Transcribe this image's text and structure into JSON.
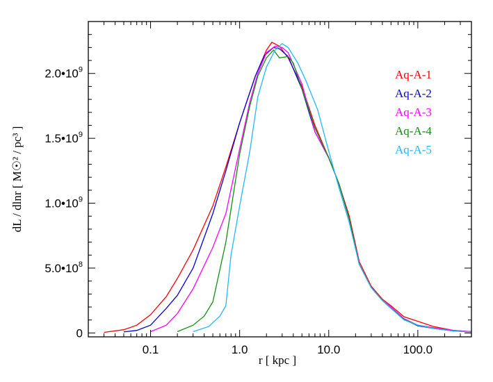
{
  "chart_data": {
    "type": "line",
    "xscale": "log",
    "xlim": [
      0.02,
      400
    ],
    "ylim": [
      -30000000.0,
      2400000000.0
    ],
    "xlabel": "r [ kpc ]",
    "ylabel": "dL / dlnr  [ M☉² / pc³ ]",
    "x_ticks": [
      {
        "value": 0.1,
        "label": "0.1"
      },
      {
        "value": 1.0,
        "label": "1.0"
      },
      {
        "value": 10.0,
        "label": "10.0"
      },
      {
        "value": 100.0,
        "label": "100.0"
      }
    ],
    "y_ticks": [
      {
        "value": 0,
        "label": "0",
        "exp": ""
      },
      {
        "value": 500000000,
        "label": "5.0•10",
        "exp": "8"
      },
      {
        "value": 1000000000,
        "label": "1.0•10",
        "exp": "9"
      },
      {
        "value": 1500000000,
        "label": "1.5•10",
        "exp": "9"
      },
      {
        "value": 2000000000,
        "label": "2.0•10",
        "exp": "9"
      }
    ],
    "legend_position": "top-right",
    "series": [
      {
        "name": "Aq-A-1",
        "color": "#ff0000",
        "points": [
          [
            0.03,
            5000000.0
          ],
          [
            0.05,
            25000000.0
          ],
          [
            0.07,
            60000000.0
          ],
          [
            0.1,
            140000000.0
          ],
          [
            0.15,
            280000000.0
          ],
          [
            0.2,
            420000000.0
          ],
          [
            0.3,
            640000000.0
          ],
          [
            0.5,
            980000000.0
          ],
          [
            0.7,
            1280000000.0
          ],
          [
            1.0,
            1620000000.0
          ],
          [
            1.5,
            1980000000.0
          ],
          [
            2.0,
            2180000000.0
          ],
          [
            2.3,
            2240000000.0
          ],
          [
            2.8,
            2210000000.0
          ],
          [
            3.5,
            2120000000.0
          ],
          [
            5.0,
            1900000000.0
          ],
          [
            7.0,
            1600000000.0
          ],
          [
            10.0,
            1350000000.0
          ],
          [
            13.0,
            1150000000.0
          ],
          [
            17.0,
            900000000.0
          ],
          [
            22.0,
            550000000.0
          ],
          [
            30.0,
            360000000.0
          ],
          [
            40.0,
            260000000.0
          ],
          [
            50.0,
            210000000.0
          ],
          [
            70.0,
            125000000.0
          ],
          [
            100.0,
            90000000.0
          ],
          [
            150.0,
            50000000.0
          ],
          [
            250.0,
            20000000.0
          ],
          [
            400.0,
            10000000.0
          ]
        ]
      },
      {
        "name": "Aq-A-2",
        "color": "#0000e0",
        "points": [
          [
            0.05,
            8000000.0
          ],
          [
            0.07,
            20000000.0
          ],
          [
            0.1,
            60000000.0
          ],
          [
            0.15,
            190000000.0
          ],
          [
            0.2,
            290000000.0
          ],
          [
            0.3,
            500000000.0
          ],
          [
            0.5,
            920000000.0
          ],
          [
            0.7,
            1250000000.0
          ],
          [
            1.0,
            1620000000.0
          ],
          [
            1.5,
            1980000000.0
          ],
          [
            1.9,
            2140000000.0
          ],
          [
            2.4,
            2200000000.0
          ],
          [
            2.8,
            2190000000.0
          ],
          [
            3.5,
            2130000000.0
          ],
          [
            5.0,
            1880000000.0
          ],
          [
            7.0,
            1550000000.0
          ],
          [
            10.0,
            1350000000.0
          ],
          [
            13.0,
            1150000000.0
          ],
          [
            17.0,
            880000000.0
          ],
          [
            22.0,
            530000000.0
          ],
          [
            30.0,
            350000000.0
          ],
          [
            40.0,
            250000000.0
          ],
          [
            50.0,
            190000000.0
          ],
          [
            70.0,
            105000000.0
          ],
          [
            100.0,
            55000000.0
          ],
          [
            150.0,
            35000000.0
          ],
          [
            250.0,
            15000000.0
          ],
          [
            400.0,
            10000000.0
          ]
        ]
      },
      {
        "name": "Aq-A-3",
        "color": "#ff00ff",
        "points": [
          [
            0.1,
            10000000.0
          ],
          [
            0.15,
            60000000.0
          ],
          [
            0.2,
            150000000.0
          ],
          [
            0.3,
            340000000.0
          ],
          [
            0.5,
            660000000.0
          ],
          [
            0.7,
            920000000.0
          ],
          [
            1.0,
            1420000000.0
          ],
          [
            1.3,
            1780000000.0
          ],
          [
            1.6,
            2000000000.0
          ],
          [
            2.0,
            2160000000.0
          ],
          [
            2.5,
            2210000000.0
          ],
          [
            3.0,
            2200000000.0
          ],
          [
            3.5,
            2160000000.0
          ],
          [
            5.0,
            1920000000.0
          ],
          [
            7.0,
            1550000000.0
          ],
          [
            10.0,
            1350000000.0
          ],
          [
            13.0,
            1150000000.0
          ],
          [
            17.0,
            880000000.0
          ],
          [
            22.0,
            530000000.0
          ],
          [
            30.0,
            350000000.0
          ],
          [
            40.0,
            250000000.0
          ],
          [
            50.0,
            200000000.0
          ],
          [
            70.0,
            110000000.0
          ],
          [
            100.0,
            60000000.0
          ],
          [
            150.0,
            40000000.0
          ],
          [
            250.0,
            20000000.0
          ],
          [
            400.0,
            10000000.0
          ]
        ]
      },
      {
        "name": "Aq-A-4",
        "color": "#109010",
        "points": [
          [
            0.2,
            10000000.0
          ],
          [
            0.3,
            60000000.0
          ],
          [
            0.4,
            130000000.0
          ],
          [
            0.5,
            240000000.0
          ],
          [
            0.7,
            700000000.0
          ],
          [
            1.0,
            1380000000.0
          ],
          [
            1.3,
            1750000000.0
          ],
          [
            1.6,
            1980000000.0
          ],
          [
            2.0,
            2120000000.0
          ],
          [
            2.4,
            2180000000.0
          ],
          [
            2.8,
            2120000000.0
          ],
          [
            3.5,
            2130000000.0
          ],
          [
            4.0,
            2080000000.0
          ],
          [
            5.0,
            1880000000.0
          ],
          [
            7.0,
            1580000000.0
          ],
          [
            10.0,
            1350000000.0
          ],
          [
            13.0,
            1150000000.0
          ],
          [
            17.0,
            880000000.0
          ],
          [
            22.0,
            530000000.0
          ],
          [
            30.0,
            350000000.0
          ],
          [
            40.0,
            250000000.0
          ],
          [
            50.0,
            190000000.0
          ],
          [
            70.0,
            105000000.0
          ],
          [
            100.0,
            60000000.0
          ],
          [
            150.0,
            35000000.0
          ],
          [
            250.0,
            15000000.0
          ],
          [
            400.0,
            8000000.0
          ]
        ]
      },
      {
        "name": "Aq-A-5",
        "color": "#20b8ff",
        "points": [
          [
            0.3,
            10000000.0
          ],
          [
            0.45,
            50000000.0
          ],
          [
            0.6,
            130000000.0
          ],
          [
            0.7,
            210000000.0
          ],
          [
            0.8,
            600000000.0
          ],
          [
            1.0,
            980000000.0
          ],
          [
            1.3,
            1400000000.0
          ],
          [
            1.6,
            1820000000.0
          ],
          [
            2.0,
            2050000000.0
          ],
          [
            2.5,
            2180000000.0
          ],
          [
            3.0,
            2230000000.0
          ],
          [
            3.5,
            2200000000.0
          ],
          [
            4.5,
            2080000000.0
          ],
          [
            5.5,
            1950000000.0
          ],
          [
            7.5,
            1720000000.0
          ],
          [
            10.0,
            1400000000.0
          ],
          [
            13.0,
            1120000000.0
          ],
          [
            17.0,
            850000000.0
          ],
          [
            22.0,
            530000000.0
          ],
          [
            30.0,
            350000000.0
          ],
          [
            40.0,
            250000000.0
          ],
          [
            50.0,
            190000000.0
          ],
          [
            70.0,
            100000000.0
          ],
          [
            100.0,
            60000000.0
          ],
          [
            150.0,
            35000000.0
          ],
          [
            250.0,
            15000000.0
          ],
          [
            400.0,
            8000000.0
          ]
        ]
      }
    ]
  }
}
